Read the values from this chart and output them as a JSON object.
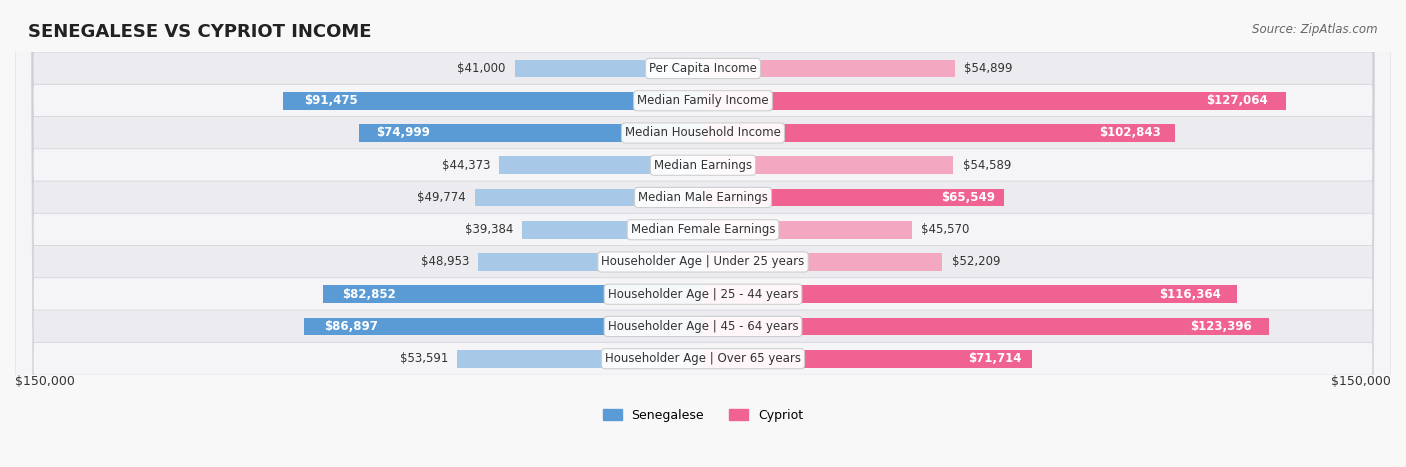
{
  "title": "SENEGALESE VS CYPRIOT INCOME",
  "source": "Source: ZipAtlas.com",
  "categories": [
    "Per Capita Income",
    "Median Family Income",
    "Median Household Income",
    "Median Earnings",
    "Median Male Earnings",
    "Median Female Earnings",
    "Householder Age | Under 25 years",
    "Householder Age | 25 - 44 years",
    "Householder Age | 45 - 64 years",
    "Householder Age | Over 65 years"
  ],
  "senegalese_values": [
    41000,
    91475,
    74999,
    44373,
    49774,
    39384,
    48953,
    82852,
    86897,
    53591
  ],
  "cypriot_values": [
    54899,
    127064,
    102843,
    54589,
    65549,
    45570,
    52209,
    116364,
    123396,
    71714
  ],
  "senegalese_labels": [
    "$41,000",
    "$91,475",
    "$74,999",
    "$44,373",
    "$49,774",
    "$39,384",
    "$48,953",
    "$82,852",
    "$86,897",
    "$53,591"
  ],
  "cypriot_labels": [
    "$54,899",
    "$127,064",
    "$102,843",
    "$54,589",
    "$65,549",
    "$45,570",
    "$52,209",
    "$116,364",
    "$123,396",
    "$71,714"
  ],
  "max_value": 150000,
  "senegalese_color_light": "#a8c8e8",
  "senegalese_color_dark": "#5b9bd5",
  "cypriot_color_light": "#f4a7c0",
  "cypriot_color_dark": "#f06292",
  "background_color": "#f5f5f5",
  "bar_background": "#e8e8ee",
  "row_bg": "#f0f0f5",
  "title_fontsize": 13,
  "label_fontsize": 8.5,
  "category_fontsize": 8.5,
  "axis_label_fontsize": 9,
  "legend_fontsize": 9,
  "x_left_label": "$150,000",
  "x_right_label": "$150,000"
}
